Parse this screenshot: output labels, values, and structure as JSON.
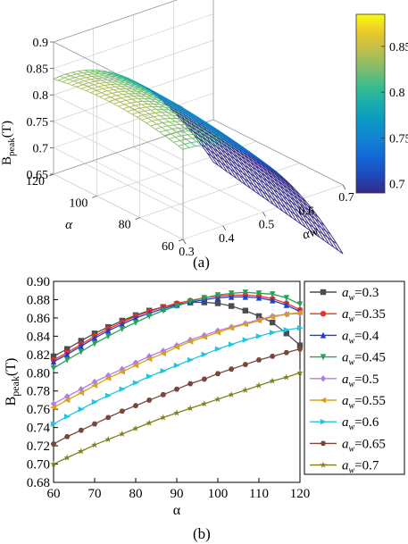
{
  "captions": [
    "(a)",
    "(b)"
  ],
  "chart_data": [
    {
      "type": "surface",
      "title": "",
      "xlabel": "αw",
      "ylabel": "α",
      "zlabel_main": "B",
      "zlabel_sub": "peak",
      "zlabel_unit": "(T)",
      "x_ticks": [
        "0.3",
        "0.4",
        "0.5",
        "0.6",
        "0.7"
      ],
      "y_ticks": [
        "60",
        "80",
        "100",
        "120"
      ],
      "z_ticks": [
        "0.65",
        "0.7",
        "0.75",
        "0.8",
        "0.85",
        "0.9"
      ],
      "colorbar_ticks": [
        "0.7",
        "0.75",
        "0.8",
        "0.85"
      ],
      "colorbar_range": [
        0.69,
        0.885
      ],
      "xlim": [
        0.3,
        0.7
      ],
      "ylim": [
        60,
        120
      ],
      "zlim": [
        0.65,
        0.9
      ]
    },
    {
      "type": "line",
      "title": "",
      "xlabel": "α",
      "ylabel_main": "B",
      "ylabel_sub": "peak",
      "ylabel_unit": "(T)",
      "xlim": [
        60,
        120
      ],
      "ylim": [
        0.68,
        0.9
      ],
      "x_ticks": [
        "60",
        "70",
        "80",
        "90",
        "100",
        "110",
        "120"
      ],
      "y_ticks": [
        "0.68",
        "0.70",
        "0.72",
        "0.74",
        "0.76",
        "0.78",
        "0.80",
        "0.82",
        "0.84",
        "0.86",
        "0.88",
        "0.90"
      ],
      "x": [
        60,
        63.3,
        66.7,
        70,
        73.3,
        76.7,
        80,
        83.3,
        86.7,
        90,
        93.3,
        96.7,
        100,
        103.3,
        106.7,
        110,
        113.3,
        116.7,
        120
      ],
      "legend_position": "right",
      "series": [
        {
          "name": "0.3",
          "color": "#4d4d4d",
          "marker": "square",
          "values": [
            0.818,
            0.826,
            0.835,
            0.843,
            0.85,
            0.857,
            0.863,
            0.868,
            0.872,
            0.875,
            0.877,
            0.877,
            0.876,
            0.873,
            0.868,
            0.862,
            0.855,
            0.843,
            0.83
          ]
        },
        {
          "name": "0.35",
          "color": "#e8312a",
          "marker": "circle",
          "values": [
            0.814,
            0.822,
            0.831,
            0.84,
            0.848,
            0.855,
            0.862,
            0.867,
            0.872,
            0.876,
            0.879,
            0.882,
            0.884,
            0.885,
            0.885,
            0.884,
            0.881,
            0.876,
            0.869
          ]
        },
        {
          "name": "0.4",
          "color": "#2040c8",
          "marker": "triangle-up",
          "values": [
            0.812,
            0.82,
            0.829,
            0.838,
            0.846,
            0.853,
            0.86,
            0.865,
            0.87,
            0.874,
            0.877,
            0.88,
            0.882,
            0.883,
            0.883,
            0.882,
            0.879,
            0.874,
            0.867
          ]
        },
        {
          "name": "0.45",
          "color": "#27a15a",
          "marker": "triangle-down",
          "values": [
            0.805,
            0.814,
            0.823,
            0.832,
            0.84,
            0.848,
            0.855,
            0.862,
            0.868,
            0.873,
            0.878,
            0.882,
            0.885,
            0.887,
            0.888,
            0.887,
            0.886,
            0.882,
            0.875
          ]
        },
        {
          "name": "0.5",
          "color": "#b07de8",
          "marker": "diamond",
          "values": [
            0.766,
            0.774,
            0.782,
            0.79,
            0.797,
            0.804,
            0.811,
            0.818,
            0.824,
            0.83,
            0.836,
            0.841,
            0.846,
            0.85,
            0.854,
            0.858,
            0.862,
            0.864,
            0.865
          ]
        },
        {
          "name": "0.55",
          "color": "#d9a018",
          "marker": "triangle-left",
          "values": [
            0.762,
            0.77,
            0.778,
            0.786,
            0.794,
            0.801,
            0.808,
            0.815,
            0.821,
            0.828,
            0.834,
            0.839,
            0.844,
            0.849,
            0.853,
            0.857,
            0.861,
            0.864,
            0.866
          ]
        },
        {
          "name": "0.6",
          "color": "#1fc6e3",
          "marker": "triangle-right",
          "values": [
            0.744,
            0.752,
            0.76,
            0.768,
            0.775,
            0.782,
            0.789,
            0.796,
            0.802,
            0.808,
            0.814,
            0.82,
            0.826,
            0.831,
            0.836,
            0.84,
            0.844,
            0.847,
            0.849
          ]
        },
        {
          "name": "0.65",
          "color": "#7a4638",
          "marker": "hexagon",
          "values": [
            0.722,
            0.73,
            0.737,
            0.744,
            0.751,
            0.758,
            0.764,
            0.77,
            0.776,
            0.782,
            0.788,
            0.793,
            0.799,
            0.804,
            0.809,
            0.814,
            0.818,
            0.822,
            0.826
          ]
        },
        {
          "name": "0.7",
          "color": "#7f7f1a",
          "marker": "star",
          "values": [
            0.7,
            0.707,
            0.714,
            0.721,
            0.727,
            0.733,
            0.739,
            0.745,
            0.751,
            0.756,
            0.761,
            0.766,
            0.771,
            0.776,
            0.781,
            0.786,
            0.791,
            0.795,
            0.8
          ]
        }
      ],
      "legend_prefix": "a",
      "legend_sub": "w",
      "legend_eq": "="
    }
  ]
}
